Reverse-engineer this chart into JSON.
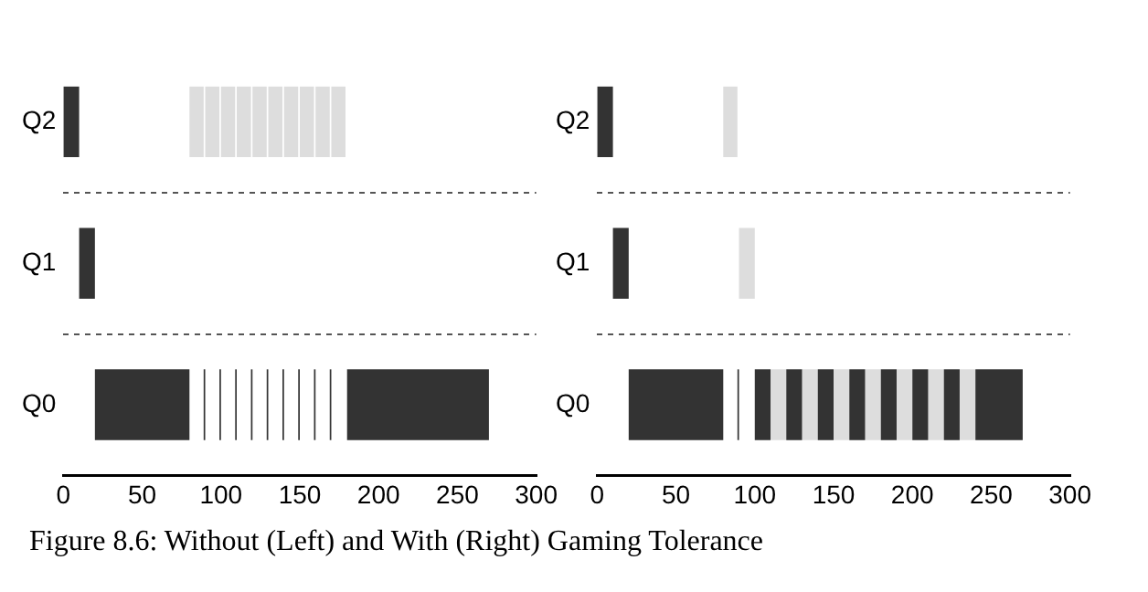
{
  "chart_data": [
    {
      "type": "bar",
      "orientation": "horizontal",
      "categories": [
        "Q2",
        "Q1",
        "Q0"
      ],
      "xlim": [
        0,
        300
      ],
      "xticks": [
        0,
        50,
        100,
        150,
        200,
        250,
        300
      ],
      "grid": "y",
      "annotations": [
        "Figure 8.6: Without (Left) and With (Right) Gaming Tolerance"
      ],
      "series": [
        {
          "color": "#333333",
          "values": [
            10,
            10,
            60
          ],
          "base": [
            0,
            10,
            20
          ]
        },
        {
          "color": "#333333",
          "values": [
            null,
            null,
            1
          ],
          "base": [
            null,
            null,
            89
          ]
        },
        {
          "color": "#333333",
          "values": [
            null,
            null,
            1
          ],
          "base": [
            null,
            null,
            99
          ]
        },
        {
          "color": "#333333",
          "values": [
            null,
            null,
            1
          ],
          "base": [
            null,
            null,
            109
          ]
        },
        {
          "color": "#333333",
          "values": [
            null,
            null,
            1
          ],
          "base": [
            null,
            null,
            119
          ]
        },
        {
          "color": "#333333",
          "values": [
            null,
            null,
            1
          ],
          "base": [
            null,
            null,
            129
          ]
        },
        {
          "color": "#333333",
          "values": [
            null,
            null,
            1
          ],
          "base": [
            null,
            null,
            139
          ]
        },
        {
          "color": "#333333",
          "values": [
            null,
            null,
            1
          ],
          "base": [
            null,
            null,
            149
          ]
        },
        {
          "color": "#333333",
          "values": [
            null,
            null,
            1
          ],
          "base": [
            null,
            null,
            159
          ]
        },
        {
          "color": "#333333",
          "values": [
            null,
            null,
            1
          ],
          "base": [
            null,
            null,
            169
          ]
        },
        {
          "color": "#333333",
          "values": [
            null,
            null,
            90
          ],
          "base": [
            null,
            null,
            180
          ]
        },
        {
          "color": "#dddddd",
          "values": [
            9,
            null,
            null
          ],
          "base": [
            80,
            null,
            null
          ]
        },
        {
          "color": "#dddddd",
          "values": [
            9,
            null,
            null
          ],
          "base": [
            90,
            null,
            null
          ]
        },
        {
          "color": "#dddddd",
          "values": [
            9,
            null,
            null
          ],
          "base": [
            100,
            null,
            null
          ]
        },
        {
          "color": "#dddddd",
          "values": [
            9,
            null,
            null
          ],
          "base": [
            110,
            null,
            null
          ]
        },
        {
          "color": "#dddddd",
          "values": [
            9,
            null,
            null
          ],
          "base": [
            120,
            null,
            null
          ]
        },
        {
          "color": "#dddddd",
          "values": [
            9,
            null,
            null
          ],
          "base": [
            130,
            null,
            null
          ]
        },
        {
          "color": "#dddddd",
          "values": [
            9,
            null,
            null
          ],
          "base": [
            140,
            null,
            null
          ]
        },
        {
          "color": "#dddddd",
          "values": [
            9,
            null,
            null
          ],
          "base": [
            150,
            null,
            null
          ]
        },
        {
          "color": "#dddddd",
          "values": [
            9,
            null,
            null
          ],
          "base": [
            160,
            null,
            null
          ]
        },
        {
          "color": "#dddddd",
          "values": [
            9,
            null,
            null
          ],
          "base": [
            170,
            null,
            null
          ]
        }
      ]
    },
    {
      "type": "bar",
      "orientation": "horizontal",
      "categories": [
        "Q2",
        "Q1",
        "Q0"
      ],
      "xlim": [
        0,
        300
      ],
      "xticks": [
        0,
        50,
        100,
        150,
        200,
        250,
        300
      ],
      "grid": "y",
      "series": [
        {
          "color": "#333333",
          "values": [
            10,
            10,
            60
          ],
          "base": [
            0,
            10,
            20
          ]
        },
        {
          "color": "#333333",
          "values": [
            null,
            null,
            1
          ],
          "base": [
            null,
            null,
            89
          ]
        },
        {
          "color": "#333333",
          "values": [
            null,
            null,
            10
          ],
          "base": [
            null,
            null,
            100
          ]
        },
        {
          "color": "#333333",
          "values": [
            null,
            null,
            10
          ],
          "base": [
            null,
            null,
            120
          ]
        },
        {
          "color": "#333333",
          "values": [
            null,
            null,
            10
          ],
          "base": [
            null,
            null,
            140
          ]
        },
        {
          "color": "#333333",
          "values": [
            null,
            null,
            10
          ],
          "base": [
            null,
            null,
            160
          ]
        },
        {
          "color": "#333333",
          "values": [
            null,
            null,
            10
          ],
          "base": [
            null,
            null,
            180
          ]
        },
        {
          "color": "#333333",
          "values": [
            null,
            null,
            10
          ],
          "base": [
            null,
            null,
            200
          ]
        },
        {
          "color": "#333333",
          "values": [
            null,
            null,
            10
          ],
          "base": [
            null,
            null,
            220
          ]
        },
        {
          "color": "#333333",
          "values": [
            null,
            null,
            30
          ],
          "base": [
            null,
            null,
            240
          ]
        },
        {
          "color": "#dddddd",
          "values": [
            9,
            10,
            10
          ],
          "base": [
            80,
            90,
            110
          ]
        },
        {
          "color": "#dddddd",
          "values": [
            null,
            null,
            10
          ],
          "base": [
            null,
            null,
            130
          ]
        },
        {
          "color": "#dddddd",
          "values": [
            null,
            null,
            10
          ],
          "base": [
            null,
            null,
            150
          ]
        },
        {
          "color": "#dddddd",
          "values": [
            null,
            null,
            10
          ],
          "base": [
            null,
            null,
            170
          ]
        },
        {
          "color": "#dddddd",
          "values": [
            null,
            null,
            10
          ],
          "base": [
            null,
            null,
            190
          ]
        },
        {
          "color": "#dddddd",
          "values": [
            null,
            null,
            10
          ],
          "base": [
            null,
            null,
            210
          ]
        },
        {
          "color": "#dddddd",
          "values": [
            null,
            null,
            10
          ],
          "base": [
            null,
            null,
            230
          ]
        }
      ]
    }
  ]
}
